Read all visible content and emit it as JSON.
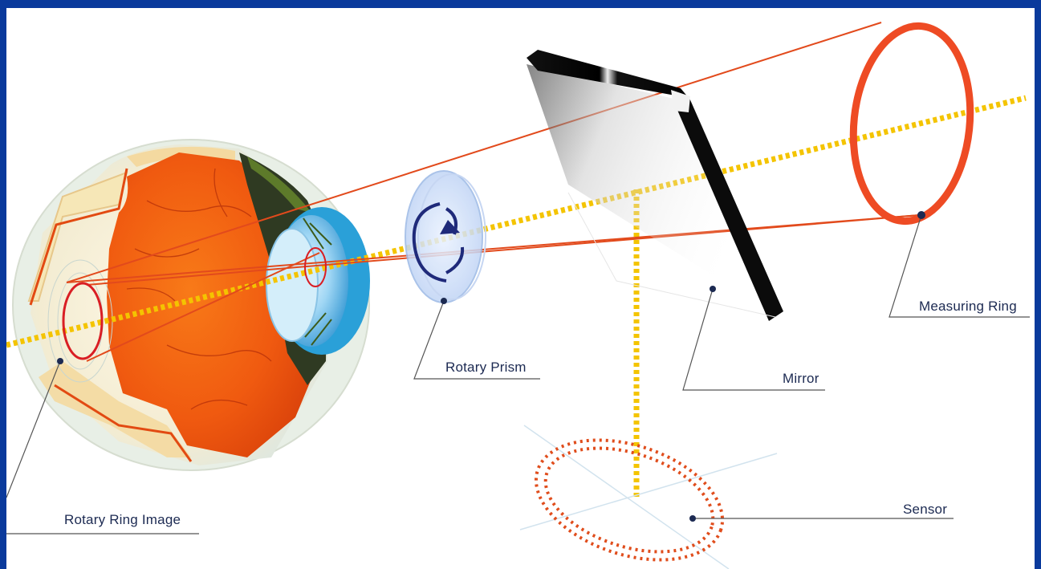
{
  "labels": {
    "rotary_ring_image": "Rotary Ring Image",
    "rotary_prism": "Rotary Prism",
    "mirror": "Mirror",
    "measuring_ring": "Measuring Ring",
    "sensor": "Sensor"
  },
  "colors": {
    "frame": "#0a3a9c",
    "measuring_ring": "#ee4b24",
    "light_path": "#f4c400",
    "retina": "#f05a12",
    "prism_arrow": "#1f2a7a",
    "label_text": "#1c2a52"
  }
}
